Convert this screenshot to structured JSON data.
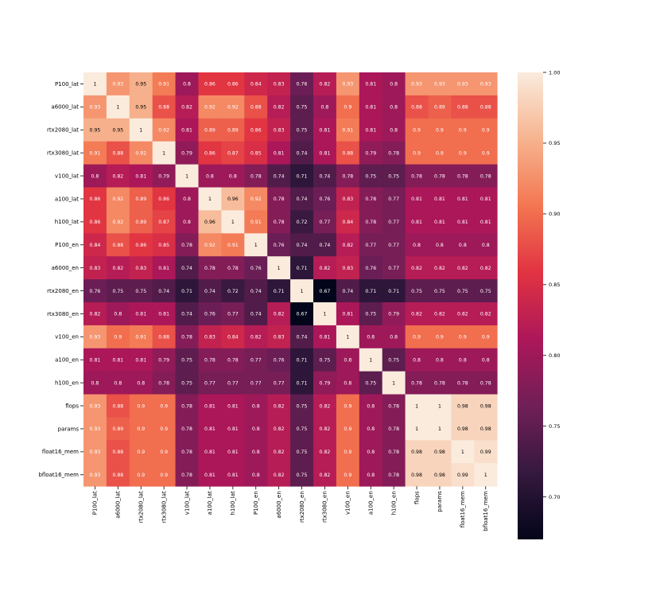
{
  "chart_data": {
    "type": "heatmap",
    "title": "",
    "xlabel": "",
    "ylabel": "",
    "labels": [
      "P100_lat",
      "a6000_lat",
      "rtx2080_lat",
      "rtx3080_lat",
      "v100_lat",
      "a100_lat",
      "h100_lat",
      "P100_en",
      "a6000_en",
      "rtx2080_en",
      "rtx3080_en",
      "v100_en",
      "a100_en",
      "h100_en",
      "flops",
      "params",
      "float16_mem",
      "bfloat16_mem"
    ],
    "values": [
      [
        1,
        0.93,
        0.95,
        0.91,
        0.8,
        0.86,
        0.86,
        0.84,
        0.83,
        0.76,
        0.82,
        0.93,
        0.81,
        0.8,
        0.93,
        0.93,
        0.93,
        0.93
      ],
      [
        0.93,
        1,
        0.95,
        0.88,
        0.82,
        0.92,
        0.92,
        0.88,
        0.82,
        0.75,
        0.8,
        0.9,
        0.81,
        0.8,
        0.88,
        0.89,
        0.88,
        0.88
      ],
      [
        0.95,
        0.95,
        1,
        0.92,
        0.81,
        0.89,
        0.89,
        0.86,
        0.83,
        0.75,
        0.81,
        0.91,
        0.81,
        0.8,
        0.9,
        0.9,
        0.9,
        0.9
      ],
      [
        0.91,
        0.88,
        0.92,
        1,
        0.79,
        0.86,
        0.87,
        0.85,
        0.81,
        0.74,
        0.81,
        0.88,
        0.79,
        0.78,
        0.9,
        0.9,
        0.9,
        0.9
      ],
      [
        0.8,
        0.82,
        0.81,
        0.79,
        1,
        0.8,
        0.8,
        0.78,
        0.74,
        0.71,
        0.74,
        0.78,
        0.75,
        0.75,
        0.78,
        0.78,
        0.78,
        0.78
      ],
      [
        0.86,
        0.92,
        0.89,
        0.86,
        0.8,
        1,
        0.96,
        0.92,
        0.78,
        0.74,
        0.76,
        0.83,
        0.78,
        0.77,
        0.81,
        0.81,
        0.81,
        0.81
      ],
      [
        0.86,
        0.92,
        0.89,
        0.87,
        0.8,
        0.96,
        1,
        0.91,
        0.78,
        0.72,
        0.77,
        0.84,
        0.78,
        0.77,
        0.81,
        0.81,
        0.81,
        0.81
      ],
      [
        0.84,
        0.88,
        0.86,
        0.85,
        0.78,
        0.92,
        0.91,
        1,
        0.76,
        0.74,
        0.74,
        0.82,
        0.77,
        0.77,
        0.8,
        0.8,
        0.8,
        0.8
      ],
      [
        0.83,
        0.82,
        0.83,
        0.81,
        0.74,
        0.78,
        0.78,
        0.76,
        1,
        0.71,
        0.82,
        0.83,
        0.76,
        0.77,
        0.82,
        0.82,
        0.82,
        0.82
      ],
      [
        0.76,
        0.75,
        0.75,
        0.74,
        0.71,
        0.74,
        0.72,
        0.74,
        0.71,
        1,
        0.67,
        0.74,
        0.71,
        0.71,
        0.75,
        0.75,
        0.75,
        0.75
      ],
      [
        0.82,
        0.8,
        0.81,
        0.81,
        0.74,
        0.76,
        0.77,
        0.74,
        0.82,
        0.67,
        1,
        0.81,
        0.75,
        0.79,
        0.82,
        0.82,
        0.82,
        0.82
      ],
      [
        0.93,
        0.9,
        0.91,
        0.88,
        0.78,
        0.83,
        0.84,
        0.82,
        0.83,
        0.74,
        0.81,
        1,
        0.8,
        0.8,
        0.9,
        0.9,
        0.9,
        0.9
      ],
      [
        0.81,
        0.81,
        0.81,
        0.79,
        0.75,
        0.78,
        0.78,
        0.77,
        0.76,
        0.71,
        0.75,
        0.8,
        1,
        0.75,
        0.8,
        0.8,
        0.8,
        0.8
      ],
      [
        0.8,
        0.8,
        0.8,
        0.78,
        0.75,
        0.77,
        0.77,
        0.77,
        0.77,
        0.71,
        0.79,
        0.8,
        0.75,
        1,
        0.78,
        0.78,
        0.78,
        0.78
      ],
      [
        0.93,
        0.88,
        0.9,
        0.9,
        0.78,
        0.81,
        0.81,
        0.8,
        0.82,
        0.75,
        0.82,
        0.9,
        0.8,
        0.78,
        1,
        1,
        0.98,
        0.98
      ],
      [
        0.93,
        0.89,
        0.9,
        0.9,
        0.78,
        0.81,
        0.81,
        0.8,
        0.82,
        0.75,
        0.82,
        0.9,
        0.8,
        0.78,
        1,
        1,
        0.98,
        0.98
      ],
      [
        0.93,
        0.88,
        0.9,
        0.9,
        0.78,
        0.81,
        0.81,
        0.8,
        0.82,
        0.75,
        0.82,
        0.9,
        0.8,
        0.78,
        0.98,
        0.98,
        1,
        0.99
      ],
      [
        0.93,
        0.88,
        0.9,
        0.9,
        0.78,
        0.81,
        0.81,
        0.8,
        0.82,
        0.75,
        0.82,
        0.9,
        0.8,
        0.78,
        0.98,
        0.98,
        0.99,
        1
      ]
    ],
    "value_range": [
      0.67,
      1.0
    ],
    "colorbar": {
      "ticks": [
        1.0,
        0.95,
        0.9,
        0.85,
        0.8,
        0.75,
        0.7
      ],
      "tick_labels": [
        "1.00",
        "0.95",
        "0.90",
        "0.85",
        "0.80",
        "0.75",
        "0.70"
      ]
    },
    "colormap": "rocket",
    "colormap_stops": [
      "#03051a",
      "#35193e",
      "#701f57",
      "#ad1759",
      "#e13342",
      "#f37651",
      "#f6b48f",
      "#faebdd"
    ],
    "annotations": true,
    "grid": false,
    "legend": "colorbar-right"
  }
}
